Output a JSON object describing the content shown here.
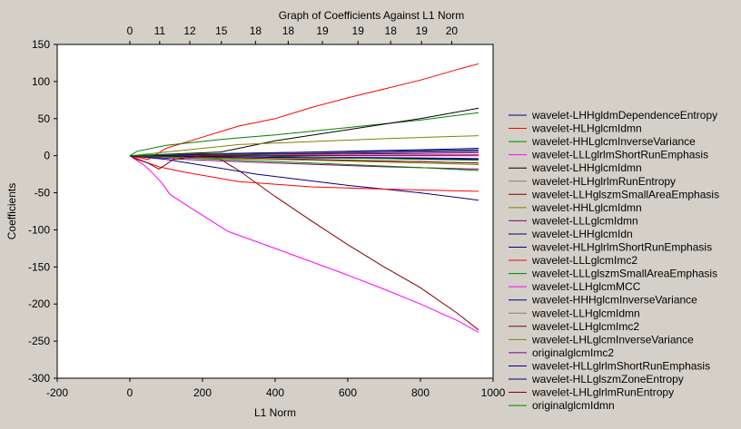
{
  "chart_data": {
    "type": "line",
    "title": "Graph of Coefficients Against L1 Norm",
    "xlabel": "L1 Norm",
    "ylabel": "Coefficients",
    "xlim": [
      -200,
      1000
    ],
    "ylim": [
      -300,
      150
    ],
    "xticks": [
      -200,
      0,
      200,
      400,
      600,
      800,
      1000
    ],
    "yticks": [
      -300,
      -250,
      -200,
      -150,
      -100,
      -50,
      0,
      50,
      100,
      150
    ],
    "top_axis": {
      "positions": [
        0,
        82,
        165,
        252,
        346,
        436,
        530,
        628,
        718,
        803,
        886
      ],
      "labels": [
        "0",
        "11",
        "12",
        "15",
        "18",
        "18",
        "19",
        "19",
        "18",
        "19",
        "20"
      ]
    },
    "grid": false,
    "legend_position": "right",
    "series": [
      {
        "name": "wavelet-LHHgldmDependenceEntropy",
        "color": "#000080",
        "x": [
          0,
          150,
          400,
          700,
          960
        ],
        "y": [
          0,
          2,
          4,
          6,
          8
        ]
      },
      {
        "name": "wavelet-HLHglcmIdmn",
        "color": "#ff0000",
        "x": [
          0,
          50,
          100,
          200,
          300,
          400,
          500,
          600,
          700,
          800,
          900,
          960
        ],
        "y": [
          0,
          -5,
          10,
          25,
          40,
          50,
          65,
          78,
          90,
          102,
          116,
          124
        ]
      },
      {
        "name": "wavelet-HHLglcmInverseVariance",
        "color": "#008000",
        "x": [
          0,
          20,
          100,
          250,
          400,
          600,
          800,
          960
        ],
        "y": [
          0,
          6,
          14,
          22,
          28,
          38,
          48,
          58
        ]
      },
      {
        "name": "wavelet-LLLglrlmShortRunEmphasis",
        "color": "#ff00ff",
        "x": [
          0,
          15,
          40,
          60,
          90,
          110,
          160,
          270,
          400,
          500,
          600,
          700,
          800,
          900,
          960
        ],
        "y": [
          0,
          -5,
          -13,
          -22,
          -38,
          -52,
          -68,
          -102,
          -125,
          -143,
          -161,
          -180,
          -200,
          -222,
          -238
        ]
      },
      {
        "name": "wavelet-LHHglcmIdmn",
        "color": "#000000",
        "x": [
          0,
          250,
          400,
          600,
          800,
          960
        ],
        "y": [
          0,
          5,
          20,
          35,
          50,
          64
        ]
      },
      {
        "name": "wavelet-HLHglrlmRunEntropy",
        "color": "#808080",
        "x": [
          0,
          200,
          500,
          800,
          960
        ],
        "y": [
          0,
          -3,
          -6,
          -8,
          -10
        ]
      },
      {
        "name": "wavelet-LLHglszmSmallAreaEmphasis",
        "color": "#800000",
        "x": [
          0,
          200,
          250,
          300,
          400,
          500,
          600,
          700,
          800,
          900,
          960
        ],
        "y": [
          0,
          0,
          -5,
          -20,
          -55,
          -88,
          -120,
          -150,
          -178,
          -212,
          -235
        ]
      },
      {
        "name": "wavelet-HHLglcmIdmn",
        "color": "#808000",
        "x": [
          0,
          100,
          300,
          500,
          700,
          960
        ],
        "y": [
          0,
          5,
          15,
          19,
          23,
          27
        ]
      },
      {
        "name": "wavelet-LLLglcmIdmn",
        "color": "#800080",
        "x": [
          0,
          150,
          400,
          700,
          960
        ],
        "y": [
          0,
          -5,
          -10,
          -15,
          -18
        ]
      },
      {
        "name": "wavelet-LHHglcmIdn",
        "color": "#000080",
        "x": [
          0,
          100,
          350,
          600,
          800,
          960
        ],
        "y": [
          0,
          -5,
          -25,
          -40,
          -50,
          -60
        ]
      },
      {
        "name": "wavelet-HLHglrlmShortRunEmphasis",
        "color": "#000080",
        "x": [
          0,
          200,
          500,
          800,
          960
        ],
        "y": [
          0,
          1,
          3,
          5,
          6
        ]
      },
      {
        "name": "wavelet-LLLglcmImc2",
        "color": "#ff0000",
        "x": [
          0,
          40,
          80,
          150,
          300,
          500,
          700,
          960
        ],
        "y": [
          0,
          -8,
          -15,
          -22,
          -35,
          -42,
          -45,
          -48
        ]
      },
      {
        "name": "wavelet-LLLglszmSmallAreaEmphasis",
        "color": "#008000",
        "x": [
          0,
          200,
          500,
          800,
          960
        ],
        "y": [
          0,
          -4,
          -10,
          -16,
          -20
        ]
      },
      {
        "name": "wavelet-LLHglcmMCC",
        "color": "#ff00ff",
        "x": [
          0,
          960
        ],
        "y": [
          0,
          0
        ]
      },
      {
        "name": "wavelet-HHHglcmInverseVariance",
        "color": "#000080",
        "x": [
          0,
          200,
          500,
          800,
          960
        ],
        "y": [
          0,
          -1,
          -2,
          -3,
          -4
        ]
      },
      {
        "name": "wavelet-LLHglcmIdmn",
        "color": "#808080",
        "x": [
          0,
          200,
          500,
          800,
          960
        ],
        "y": [
          0,
          2,
          4,
          6,
          7
        ]
      },
      {
        "name": "wavelet-LLHglcmImc2",
        "color": "#800000",
        "x": [
          0,
          200,
          500,
          800,
          960
        ],
        "y": [
          0,
          -2,
          -5,
          -8,
          -10
        ]
      },
      {
        "name": "wavelet-LHLglcmInverseVariance",
        "color": "#808000",
        "x": [
          0,
          200,
          500,
          800,
          960
        ],
        "y": [
          0,
          -3,
          -6,
          -10,
          -12
        ]
      },
      {
        "name": "originalglcmImc2",
        "color": "#800080",
        "x": [
          0,
          200,
          500,
          800,
          960
        ],
        "y": [
          0,
          1,
          2,
          3,
          4
        ]
      },
      {
        "name": "wavelet-HLLglrlmShortRunEmphasis",
        "color": "#000080",
        "x": [
          0,
          200,
          500,
          800,
          960
        ],
        "y": [
          0,
          2,
          5,
          8,
          10
        ]
      },
      {
        "name": "wavelet-HLLglszmZoneEntropy",
        "color": "#000080",
        "x": [
          0,
          200,
          500,
          800,
          960
        ],
        "y": [
          0,
          -1,
          -3,
          -4,
          -5
        ]
      },
      {
        "name": "wavelet-LHLglrlmRunEntropy",
        "color": "#800000",
        "x": [
          0,
          20,
          50,
          80,
          120,
          200,
          960
        ],
        "y": [
          0,
          -5,
          -10,
          -18,
          -5,
          0,
          1
        ]
      },
      {
        "name": "originalglcmIdmn",
        "color": "#008000",
        "x": [
          0,
          200,
          500,
          800,
          960
        ],
        "y": [
          0,
          3,
          -2,
          -5,
          -6
        ]
      }
    ]
  }
}
